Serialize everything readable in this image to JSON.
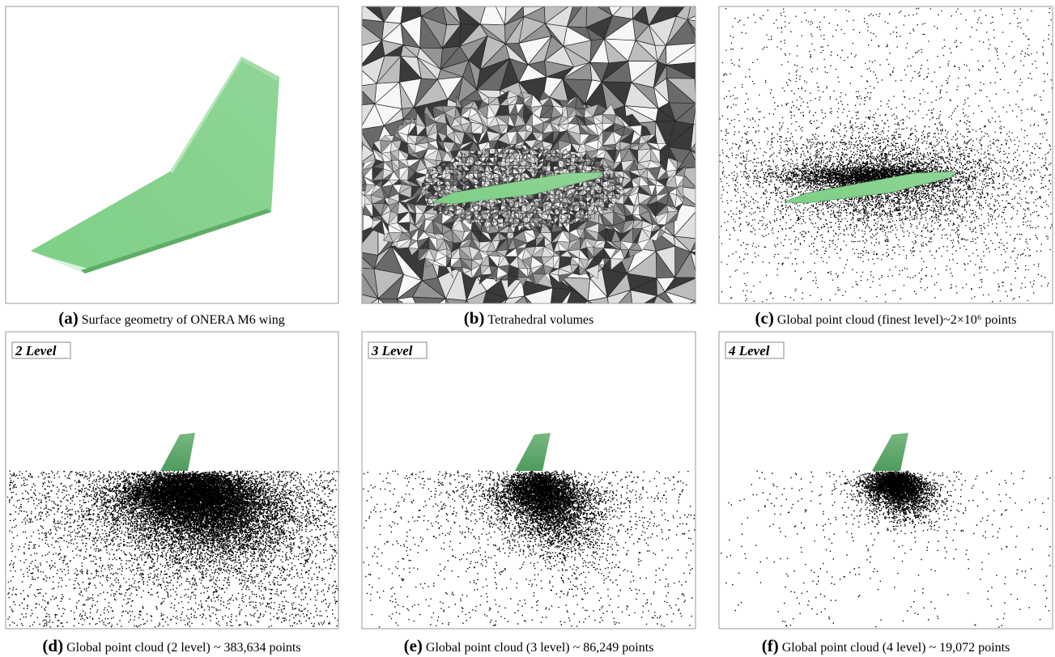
{
  "panels": [
    {
      "label": "(a)",
      "caption": "Surface geometry of ONERA M6 wing"
    },
    {
      "label": "(b)",
      "caption": "Tetrahedral volumes"
    },
    {
      "label": "(c)",
      "caption": "Global point cloud (finest level)~2×10⁶ points"
    },
    {
      "label": "(d)",
      "caption": "Global point cloud (2 level) ~ 383,634 points",
      "level": "2 Level"
    },
    {
      "label": "(e)",
      "caption": "Global point cloud (3 level) ~ 86,249 points",
      "level": "3 Level"
    },
    {
      "label": "(f)",
      "caption": "Global point cloud (4 level) ~ 19,072 points",
      "level": "4 Level"
    }
  ]
}
